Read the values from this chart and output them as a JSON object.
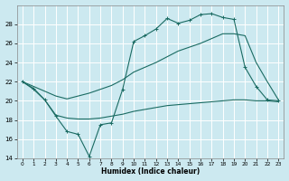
{
  "xlabel": "Humidex (Indice chaleur)",
  "bg_color": "#cce9f0",
  "grid_color": "#ffffff",
  "line_color": "#1a6b62",
  "xlim": [
    -0.5,
    23.5
  ],
  "ylim": [
    14,
    30
  ],
  "yticks": [
    14,
    16,
    18,
    20,
    22,
    24,
    26,
    28
  ],
  "xticks": [
    0,
    1,
    2,
    3,
    4,
    5,
    6,
    7,
    8,
    9,
    10,
    11,
    12,
    13,
    14,
    15,
    16,
    17,
    18,
    19,
    20,
    21,
    22,
    23
  ],
  "line1_x": [
    0,
    1,
    2,
    3,
    4,
    5,
    6,
    7,
    8,
    9,
    10,
    11,
    12,
    13,
    14,
    15,
    16,
    17,
    18,
    19,
    20,
    21,
    22,
    23
  ],
  "line1_y": [
    22.0,
    21.3,
    20.1,
    18.4,
    16.8,
    16.5,
    14.2,
    17.5,
    17.7,
    21.2,
    26.2,
    26.8,
    27.5,
    28.6,
    28.1,
    28.4,
    29.0,
    29.1,
    28.7,
    28.5,
    23.5,
    21.5,
    20.1,
    20.0
  ],
  "line2_x": [
    0,
    1,
    2,
    3,
    4,
    5,
    6,
    7,
    8,
    9,
    10,
    11,
    12,
    13,
    14,
    15,
    16,
    17,
    18,
    19,
    20,
    21,
    22,
    23
  ],
  "line2_y": [
    22.0,
    21.2,
    20.1,
    18.5,
    18.2,
    18.1,
    18.1,
    18.2,
    18.4,
    18.6,
    18.9,
    19.1,
    19.3,
    19.5,
    19.6,
    19.7,
    19.8,
    19.9,
    20.0,
    20.1,
    20.1,
    20.0,
    20.0,
    19.9
  ],
  "line3_x": [
    0,
    1,
    2,
    3,
    4,
    5,
    6,
    7,
    8,
    9,
    10,
    11,
    12,
    13,
    14,
    15,
    16,
    17,
    18,
    19,
    20,
    21,
    22,
    23
  ],
  "line3_y": [
    22.0,
    21.5,
    21.0,
    20.5,
    20.2,
    20.5,
    20.8,
    21.2,
    21.6,
    22.2,
    23.0,
    23.5,
    24.0,
    24.6,
    25.2,
    25.6,
    26.0,
    26.5,
    27.0,
    27.0,
    26.8,
    24.0,
    22.0,
    20.1
  ]
}
